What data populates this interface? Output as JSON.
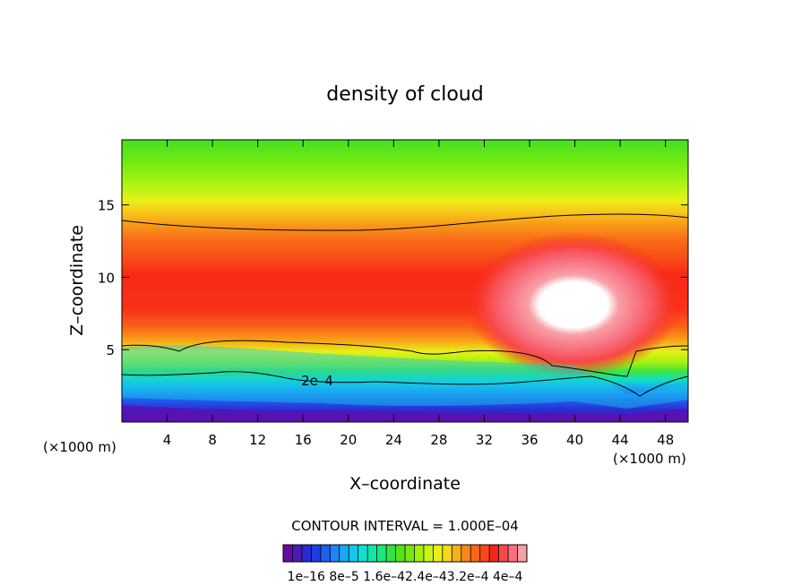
{
  "chart_data": {
    "type": "heatmap",
    "subtype": "filled-contour",
    "title": "density of cloud",
    "xlabel": "X–coordinate",
    "ylabel": "Z–coordinate",
    "x_unit": "(×1000 m)",
    "y_unit": "(×1000 m)",
    "xlim": [
      0,
      50
    ],
    "ylim": [
      0,
      19.5
    ],
    "x_ticks": [
      4,
      8,
      12,
      16,
      20,
      24,
      28,
      32,
      36,
      40,
      44,
      48
    ],
    "y_ticks": [
      5,
      10,
      15
    ],
    "contour_interval_text": "CONTOUR INTERVAL = 1.000E–04",
    "contour_label": "2e–4",
    "colorbar": {
      "labels": [
        "1e–16",
        "8e–5",
        "1.6e–4",
        "2.4e–4",
        "3.2e–4",
        "4e–4"
      ],
      "label_text": "1e–16  8e–5  1.6e–42.4e–43.2e–4  4e–4",
      "colors": [
        "#6a0aa5",
        "#4b1bb8",
        "#2b2bcf",
        "#1b3fe0",
        "#1f5ff0",
        "#1f84f5",
        "#18a8f5",
        "#14c8ec",
        "#10e0d0",
        "#10e8a8",
        "#1ee878",
        "#2fe444",
        "#52e418",
        "#7ae810",
        "#a0f010",
        "#c8f418",
        "#e8f018",
        "#f8d818",
        "#f8b018",
        "#f88818",
        "#f86818",
        "#f84818",
        "#f02818",
        "#f84848",
        "#f87080",
        "#f8a0a8"
      ]
    },
    "description_points": {
      "max_region": {
        "x": 41,
        "z": 8.2,
        "value": ">4e-4"
      }
    }
  }
}
